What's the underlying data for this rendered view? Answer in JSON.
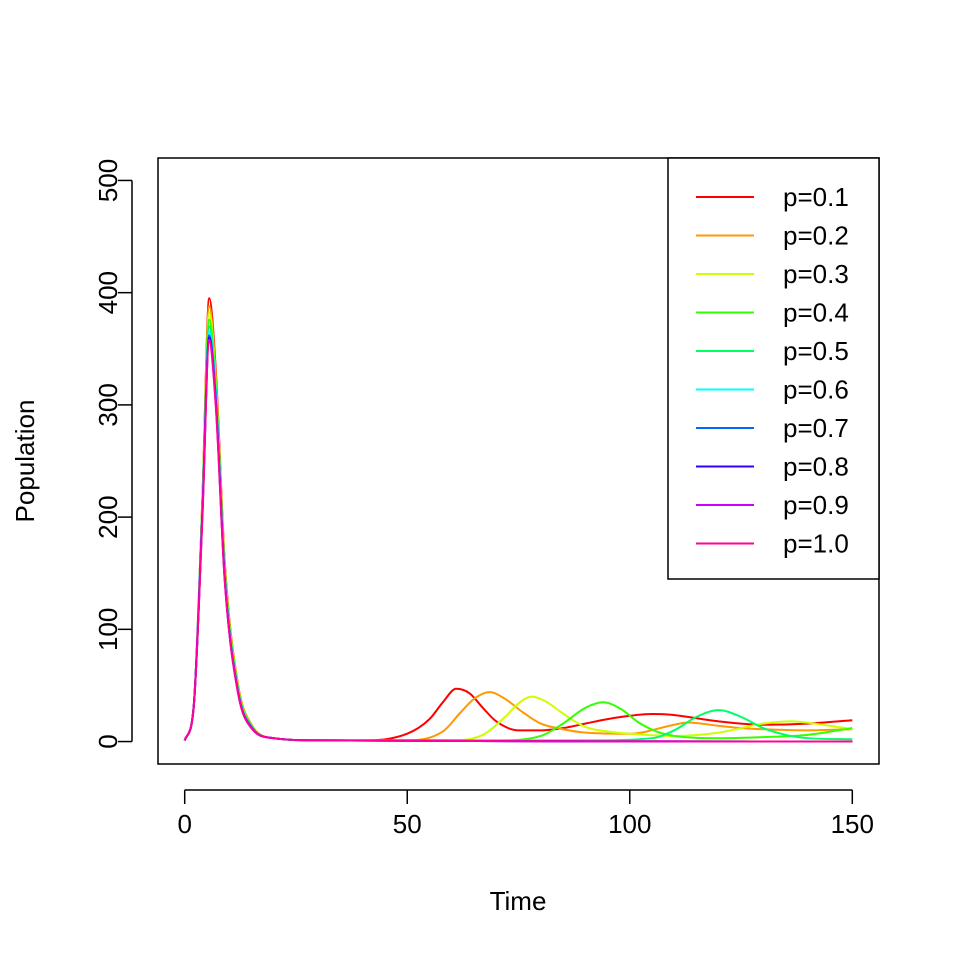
{
  "chart_data": {
    "type": "line",
    "title": "",
    "xlabel": "Time",
    "ylabel": "Population",
    "xlim": [
      -6,
      156
    ],
    "ylim": [
      -20,
      520
    ],
    "xticks": [
      0,
      50,
      100,
      150
    ],
    "yticks": [
      0,
      100,
      200,
      300,
      400,
      500
    ],
    "legend_placement": "top-right",
    "grid": false,
    "series": [
      {
        "name": "p=0.1",
        "color": "#ff0000",
        "x": [
          0,
          2,
          4,
          5.5,
          7,
          9,
          12,
          15,
          20,
          30,
          40,
          50,
          55,
          58,
          61,
          64,
          67,
          70,
          75,
          80,
          85,
          90,
          95,
          100,
          105,
          109,
          113,
          118,
          125,
          130,
          140,
          150
        ],
        "y": [
          1,
          30,
          220,
          395,
          330,
          160,
          50,
          15,
          3,
          1,
          1,
          7,
          20,
          35,
          47,
          43,
          30,
          18,
          10,
          10,
          12,
          16,
          20,
          23,
          24.5,
          24,
          22,
          19,
          16,
          15,
          16,
          19
        ]
      },
      {
        "name": "p=0.2",
        "color": "#ff9900",
        "x": [
          0,
          2,
          4,
          5.5,
          7,
          9,
          12,
          15,
          20,
          30,
          50,
          58,
          62,
          65,
          68.5,
          72,
          76,
          80,
          85,
          90,
          100,
          110,
          113,
          120,
          125,
          130,
          140,
          150
        ],
        "y": [
          1,
          30,
          218,
          388,
          325,
          158,
          50,
          15,
          3,
          1,
          1,
          9,
          26,
          38,
          44,
          38,
          26,
          16,
          11,
          8,
          7,
          15,
          17,
          14,
          12,
          11,
          10,
          11
        ]
      },
      {
        "name": "p=0.3",
        "color": "#ccff00",
        "x": [
          0,
          2,
          4,
          5.5,
          7,
          9,
          12,
          15,
          20,
          30,
          60,
          67,
          72,
          75,
          78,
          81,
          85,
          90,
          95,
          100,
          110,
          120,
          130,
          136,
          145,
          150
        ],
        "y": [
          1,
          30,
          216,
          382,
          320,
          155,
          48,
          14,
          3,
          1,
          1,
          6,
          22,
          34,
          40,
          36,
          25,
          13,
          9,
          7,
          5,
          8,
          16,
          18,
          14,
          11
        ]
      },
      {
        "name": "p=0.4",
        "color": "#33ff00",
        "x": [
          0,
          2,
          4,
          5.5,
          7,
          9,
          12,
          15,
          20,
          30,
          70,
          80,
          85,
          90,
          94,
          98,
          102,
          106,
          110,
          120,
          130,
          140,
          150
        ],
        "y": [
          1,
          30,
          214,
          376,
          316,
          153,
          47,
          14,
          3,
          1,
          1,
          5,
          16,
          30,
          35,
          29,
          17,
          9,
          5,
          3,
          4,
          6,
          12
        ]
      },
      {
        "name": "p=0.5",
        "color": "#00ff66",
        "x": [
          0,
          2,
          4,
          5.5,
          7,
          9,
          12,
          15,
          20,
          30,
          90,
          105,
          110,
          115,
          120,
          125,
          130,
          135,
          140,
          150
        ],
        "y": [
          1,
          30,
          212,
          370,
          312,
          150,
          46,
          13,
          3,
          1,
          1,
          3,
          10,
          22,
          28,
          22,
          12,
          6,
          3,
          2
        ]
      },
      {
        "name": "p=0.6",
        "color": "#00ffff",
        "x": [
          0,
          2,
          4,
          5.5,
          7,
          9,
          12,
          15,
          20,
          30,
          150
        ],
        "y": [
          1,
          30,
          210,
          365,
          308,
          148,
          45,
          13,
          3,
          1,
          0
        ]
      },
      {
        "name": "p=0.7",
        "color": "#0066ff",
        "x": [
          0,
          2,
          4,
          5.5,
          7,
          9,
          12,
          15,
          20,
          30,
          150
        ],
        "y": [
          1,
          30,
          208,
          362,
          305,
          146,
          44,
          13,
          3,
          1,
          0
        ]
      },
      {
        "name": "p=0.8",
        "color": "#3300ff",
        "x": [
          0,
          2,
          4,
          5.5,
          7,
          9,
          12,
          15,
          20,
          30,
          150
        ],
        "y": [
          1,
          30,
          206,
          360,
          302,
          145,
          44,
          12,
          3,
          1,
          0
        ]
      },
      {
        "name": "p=0.9",
        "color": "#cc00ff",
        "x": [
          0,
          2,
          4,
          5.5,
          7,
          9,
          12,
          15,
          20,
          30,
          150
        ],
        "y": [
          1,
          30,
          204,
          358,
          300,
          144,
          43,
          12,
          3,
          1,
          0
        ]
      },
      {
        "name": "p=1.0",
        "color": "#ff0099",
        "x": [
          0,
          2,
          4,
          5.5,
          7,
          9,
          12,
          15,
          20,
          30,
          150
        ],
        "y": [
          1,
          30,
          202,
          356,
          298,
          143,
          43,
          12,
          3,
          1,
          0
        ]
      }
    ]
  }
}
